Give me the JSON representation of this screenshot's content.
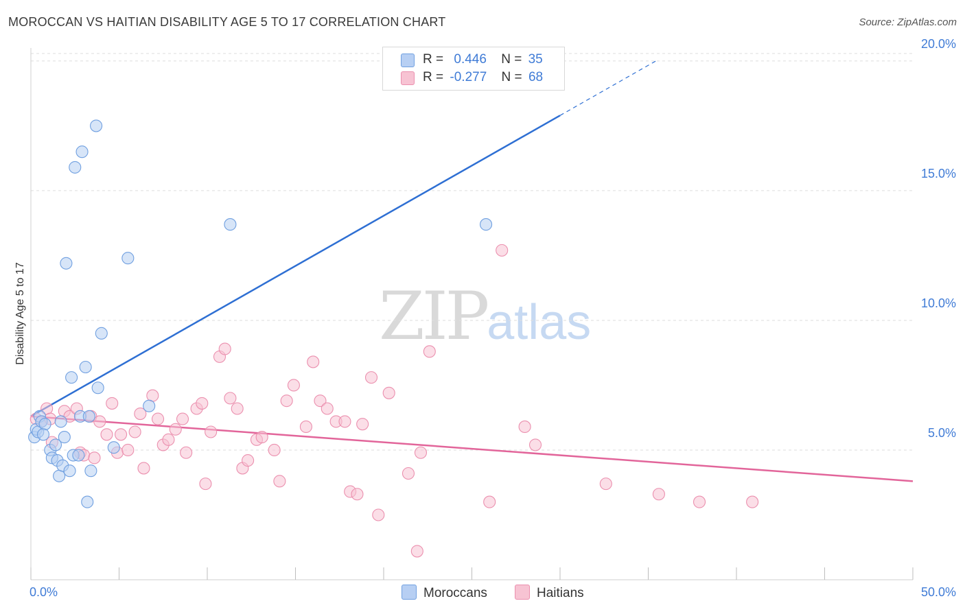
{
  "title": "MOROCCAN VS HAITIAN DISABILITY AGE 5 TO 17 CORRELATION CHART",
  "source": "Source: ZipAtlas.com",
  "watermark": {
    "zip": "ZIP",
    "atlas": "atlas"
  },
  "legend": {
    "rows": [
      {
        "r_label": "R =",
        "r_value": "0.446",
        "n_label": "N =",
        "n_value": "35"
      },
      {
        "r_label": "R =",
        "r_value": "-0.277",
        "n_label": "N =",
        "n_value": "68"
      }
    ]
  },
  "bottom_legend": {
    "series1": "Moroccans",
    "series2": "Haitians"
  },
  "colors": {
    "moroccan_fill": "#b7cff3",
    "moroccan_stroke": "#6f9fe0",
    "moroccan_line": "#2e6fd3",
    "haitian_fill": "#f7c3d3",
    "haitian_stroke": "#eb8fae",
    "haitian_line": "#e2659a",
    "tick_text": "#3f7bd6",
    "grid": "#dedede"
  },
  "chart_data": {
    "type": "scatter",
    "title": "MOROCCAN VS HAITIAN DISABILITY AGE 5 TO 17 CORRELATION CHART",
    "xlabel": "",
    "ylabel": "Disability Age 5 to 17",
    "xlim": [
      0,
      50
    ],
    "ylim": [
      0,
      20.5
    ],
    "x_tick_labels": [
      "0.0%",
      "50.0%"
    ],
    "y_ticks": [
      5,
      10,
      15,
      20
    ],
    "y_tick_labels": [
      "5.0%",
      "10.0%",
      "15.0%",
      "20.0%"
    ],
    "grid": true,
    "series": [
      {
        "name": "Moroccans",
        "r": 0.446,
        "n": 35,
        "trend": {
          "x0": 0,
          "y0": 6.3,
          "x1": 30,
          "y1": 17.9,
          "dash_to_x": 35.5
        },
        "points": [
          [
            0.2,
            5.5
          ],
          [
            0.3,
            5.8
          ],
          [
            0.4,
            5.7
          ],
          [
            0.5,
            6.3
          ],
          [
            0.6,
            6.1
          ],
          [
            0.8,
            6.0
          ],
          [
            1.1,
            5.0
          ],
          [
            1.2,
            4.7
          ],
          [
            1.4,
            5.2
          ],
          [
            1.5,
            4.6
          ],
          [
            1.6,
            4.0
          ],
          [
            1.7,
            6.1
          ],
          [
            1.8,
            4.4
          ],
          [
            1.9,
            5.5
          ],
          [
            2.0,
            12.2
          ],
          [
            2.2,
            4.2
          ],
          [
            2.3,
            7.8
          ],
          [
            2.4,
            4.8
          ],
          [
            2.5,
            15.9
          ],
          [
            2.7,
            4.8
          ],
          [
            2.8,
            6.3
          ],
          [
            2.9,
            16.5
          ],
          [
            3.1,
            8.2
          ],
          [
            3.2,
            3.0
          ],
          [
            3.3,
            6.3
          ],
          [
            3.4,
            4.2
          ],
          [
            3.7,
            17.5
          ],
          [
            3.8,
            7.4
          ],
          [
            4.0,
            9.5
          ],
          [
            4.7,
            5.1
          ],
          [
            5.5,
            12.4
          ],
          [
            6.7,
            6.7
          ],
          [
            11.3,
            13.7
          ],
          [
            25.8,
            13.7
          ],
          [
            0.7,
            5.6
          ]
        ]
      },
      {
        "name": "Haitians",
        "r": -0.277,
        "n": 68,
        "trend": {
          "x0": 0,
          "y0": 6.3,
          "x1": 50,
          "y1": 3.8
        },
        "points": [
          [
            0.3,
            6.2
          ],
          [
            0.6,
            6.1
          ],
          [
            0.9,
            6.6
          ],
          [
            1.1,
            6.2
          ],
          [
            1.2,
            5.3
          ],
          [
            1.9,
            6.5
          ],
          [
            2.2,
            6.3
          ],
          [
            2.6,
            6.6
          ],
          [
            2.8,
            4.9
          ],
          [
            3.0,
            4.8
          ],
          [
            3.4,
            6.3
          ],
          [
            3.6,
            4.7
          ],
          [
            3.9,
            6.1
          ],
          [
            4.3,
            5.6
          ],
          [
            4.6,
            6.8
          ],
          [
            4.9,
            4.9
          ],
          [
            5.1,
            5.6
          ],
          [
            5.5,
            5.0
          ],
          [
            5.9,
            5.7
          ],
          [
            6.2,
            6.4
          ],
          [
            6.4,
            4.3
          ],
          [
            6.9,
            7.1
          ],
          [
            7.2,
            6.2
          ],
          [
            7.5,
            5.2
          ],
          [
            7.8,
            5.4
          ],
          [
            8.2,
            5.8
          ],
          [
            8.6,
            6.2
          ],
          [
            8.8,
            4.9
          ],
          [
            9.4,
            6.6
          ],
          [
            9.7,
            6.8
          ],
          [
            9.9,
            3.7
          ],
          [
            10.2,
            5.7
          ],
          [
            10.7,
            8.6
          ],
          [
            11.0,
            8.9
          ],
          [
            11.3,
            7.0
          ],
          [
            11.7,
            6.6
          ],
          [
            12.0,
            4.3
          ],
          [
            12.3,
            4.6
          ],
          [
            12.8,
            5.4
          ],
          [
            13.1,
            5.5
          ],
          [
            13.8,
            5.0
          ],
          [
            14.1,
            3.8
          ],
          [
            14.5,
            6.9
          ],
          [
            14.9,
            7.5
          ],
          [
            15.6,
            5.9
          ],
          [
            16.0,
            8.4
          ],
          [
            16.4,
            6.9
          ],
          [
            16.8,
            6.6
          ],
          [
            17.3,
            6.1
          ],
          [
            17.8,
            6.1
          ],
          [
            18.1,
            3.4
          ],
          [
            18.5,
            3.3
          ],
          [
            18.8,
            6.0
          ],
          [
            19.3,
            7.8
          ],
          [
            19.7,
            2.5
          ],
          [
            20.3,
            7.2
          ],
          [
            21.4,
            4.1
          ],
          [
            21.9,
            1.1
          ],
          [
            22.1,
            4.9
          ],
          [
            22.6,
            8.8
          ],
          [
            26.0,
            3.0
          ],
          [
            26.7,
            12.7
          ],
          [
            28.0,
            5.9
          ],
          [
            28.6,
            5.2
          ],
          [
            32.6,
            3.7
          ],
          [
            35.6,
            3.3
          ],
          [
            37.9,
            3.0
          ],
          [
            40.9,
            3.0
          ]
        ]
      }
    ]
  }
}
